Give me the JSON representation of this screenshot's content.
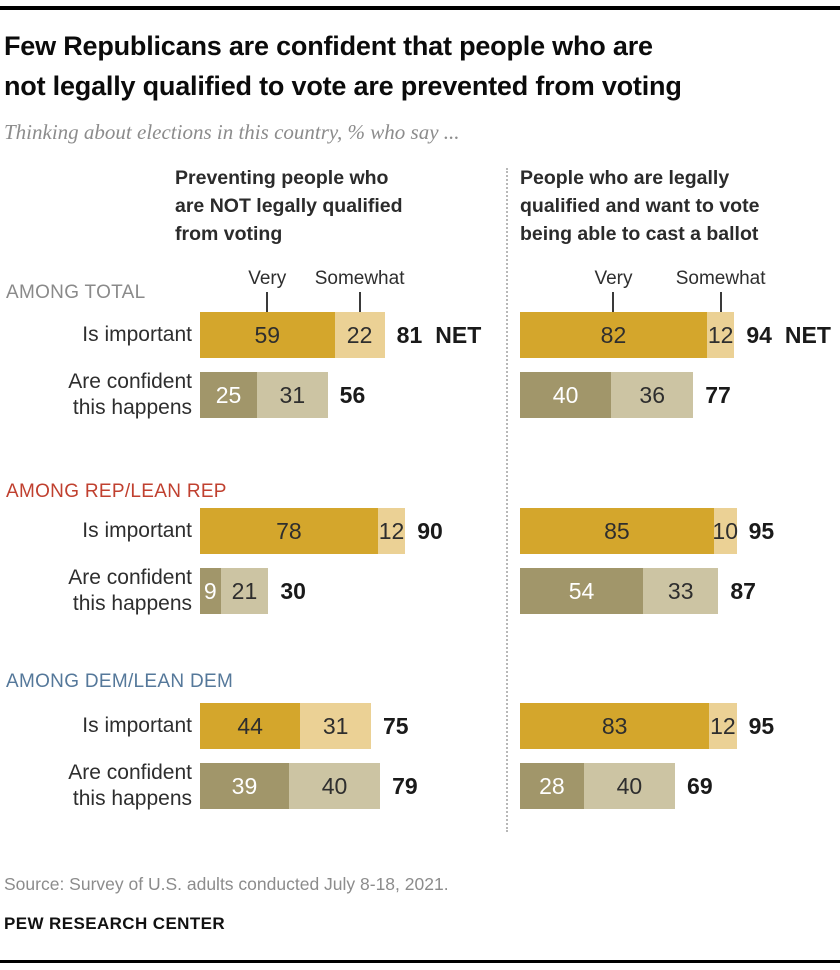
{
  "header": {
    "title_line1": "Few Republicans are confident that people who are",
    "title_line2": "not legally qualified to vote are prevented from voting",
    "subtitle": "Thinking about elections in this country, % who say ...",
    "panel_lines": [
      [
        "Preventing people who",
        "are NOT legally qualified",
        "from voting"
      ],
      [
        "People who are legally",
        "qualified and want to vote",
        "being able to cast a ballot"
      ]
    ]
  },
  "footer": {
    "source": "Source: Survey of U.S. adults conducted July 8-18, 2021.",
    "brand": "PEW RESEARCH CENTER"
  },
  "colors": {
    "importance_very": "#d4a62c",
    "importance_somewhat": "#ebd195",
    "confidence_very": "#a1966a",
    "confidence_somewhat": "#ccc4a3",
    "group_label_colors": [
      "#8a8a8a",
      "#c0402f",
      "#55789a"
    ],
    "value_text_dark": "#2e2e2e",
    "value_text_light": "#ffffff",
    "rule_black": "#000000",
    "divider_gray": "#b8b8b8"
  },
  "chart_data": {
    "type": "bar",
    "title": "Few Republicans are confident that people who are not legally qualified to vote are prevented from voting",
    "subtitle": "Thinking about elections in this country, % who say ...",
    "unit": "%",
    "stack_labels": [
      "Very",
      "Somewhat"
    ],
    "panels": [
      "Preventing people who are NOT legally qualified from voting",
      "People who are legally qualified and want to vote being able to cast a ballot"
    ],
    "sections": [
      {
        "group": "AMONG TOTAL",
        "rows": [
          {
            "measure": "Is important",
            "net_suffix": "NET",
            "panel_values": [
              {
                "very": 59,
                "somewhat": 22,
                "net": 81
              },
              {
                "very": 82,
                "somewhat": 12,
                "net": 94
              }
            ]
          },
          {
            "measure": "Are confident this happens",
            "panel_values": [
              {
                "very": 25,
                "somewhat": 31,
                "net": 56
              },
              {
                "very": 40,
                "somewhat": 36,
                "net": 77
              }
            ]
          }
        ]
      },
      {
        "group": "AMONG REP/LEAN REP",
        "rows": [
          {
            "measure": "Is important",
            "panel_values": [
              {
                "very": 78,
                "somewhat": 12,
                "net": 90
              },
              {
                "very": 85,
                "somewhat": 10,
                "net": 95
              }
            ]
          },
          {
            "measure": "Are confident this happens",
            "panel_values": [
              {
                "very": 9,
                "somewhat": 21,
                "net": 30
              },
              {
                "very": 54,
                "somewhat": 33,
                "net": 87
              }
            ]
          }
        ]
      },
      {
        "group": "AMONG DEM/LEAN DEM",
        "rows": [
          {
            "measure": "Is important",
            "panel_values": [
              {
                "very": 44,
                "somewhat": 31,
                "net": 75
              },
              {
                "very": 83,
                "somewhat": 12,
                "net": 95
              }
            ]
          },
          {
            "measure": "Are confident this happens",
            "panel_values": [
              {
                "very": 39,
                "somewhat": 40,
                "net": 79
              },
              {
                "very": 28,
                "somewhat": 40,
                "net": 69
              }
            ]
          }
        ]
      }
    ]
  }
}
